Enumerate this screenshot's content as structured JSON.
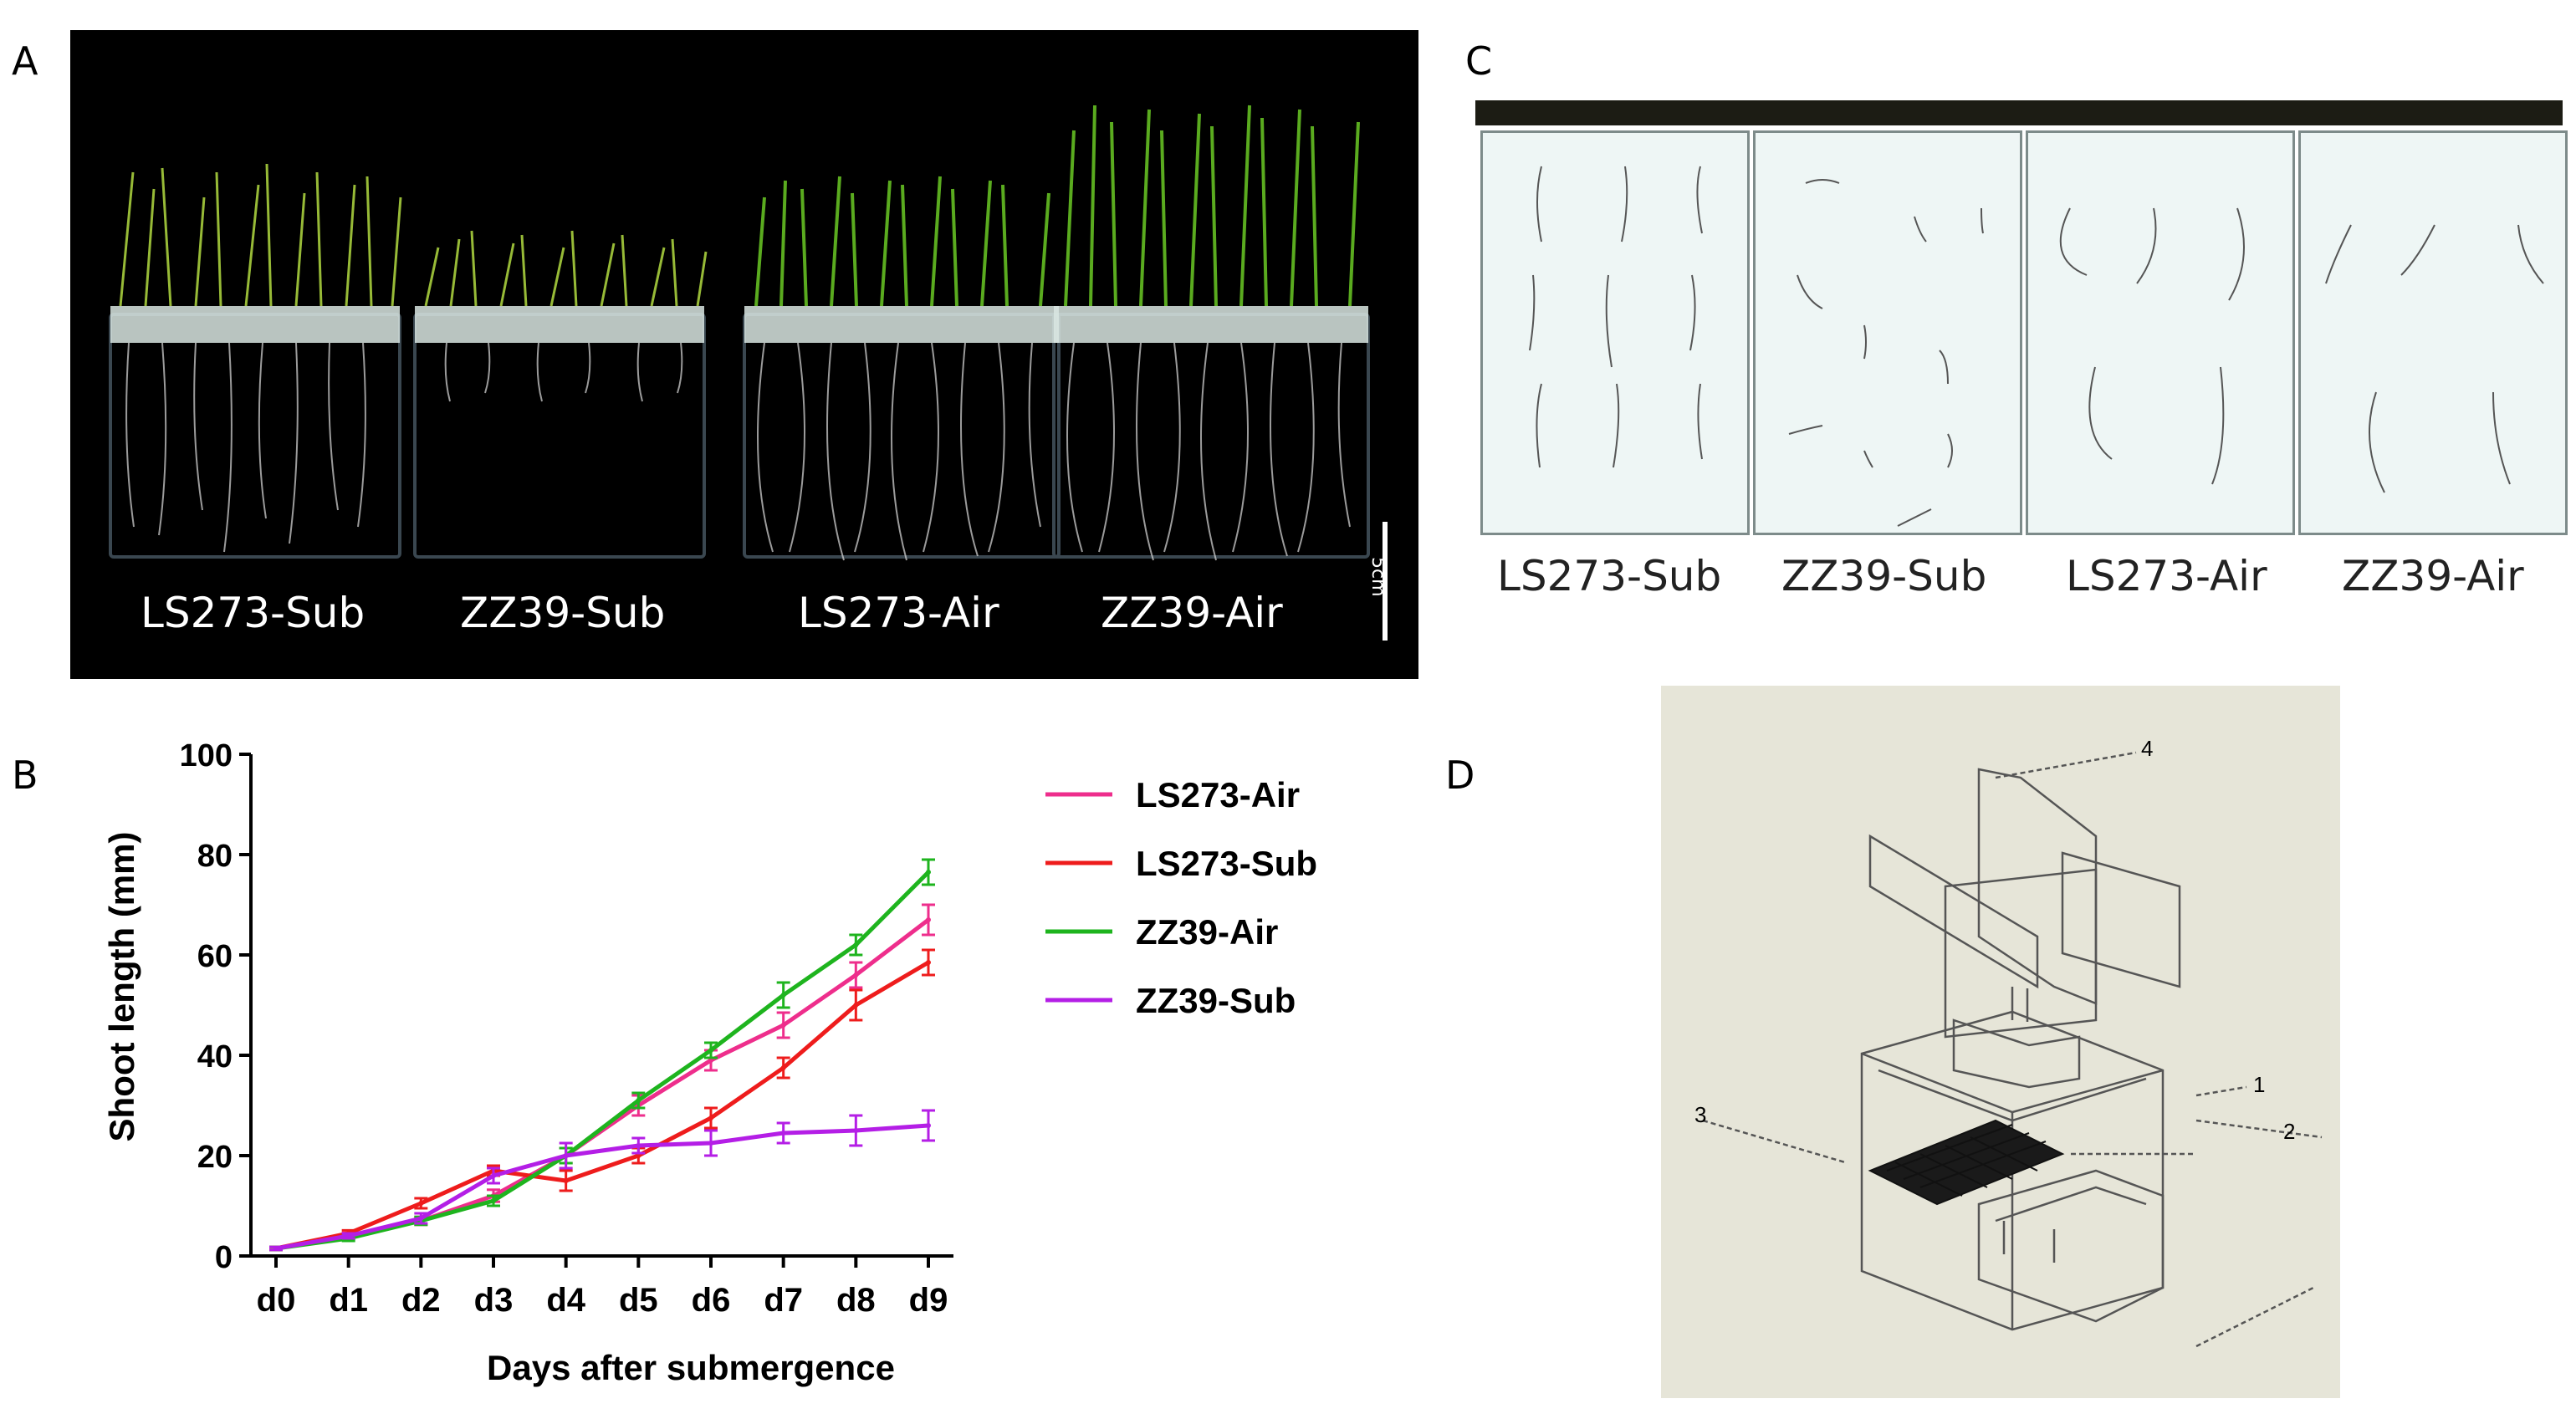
{
  "panels": {
    "a": {
      "letter": "A",
      "labels": [
        "LS273-Sub",
        "ZZ39-Sub",
        "LS273-Air",
        "ZZ39-Air"
      ],
      "scale_label": "5cm"
    },
    "b": {
      "letter": "B"
    },
    "c": {
      "letter": "C",
      "labels": [
        "LS273-Sub",
        "ZZ39-Sub",
        "LS273-Air",
        "ZZ39-Air"
      ]
    },
    "d": {
      "letter": "D",
      "callouts": [
        "1",
        "2",
        "3",
        "4"
      ]
    }
  },
  "chart_data": {
    "type": "line",
    "xlabel": "Days after submergence",
    "ylabel": "Shoot  length (mm)",
    "categories": [
      "d0",
      "d1",
      "d2",
      "d3",
      "d4",
      "d5",
      "d6",
      "d7",
      "d8",
      "d9"
    ],
    "ylim": [
      0,
      100
    ],
    "yticks": [
      0,
      20,
      40,
      60,
      80,
      100
    ],
    "legend_position": "right",
    "series": [
      {
        "name": "LS273-Air",
        "color": "#ee2e8c",
        "values": [
          1.5,
          4,
          7,
          12,
          20,
          30,
          39,
          46,
          56,
          67
        ],
        "errors": [
          0.3,
          0.6,
          0.8,
          1.2,
          1.5,
          2,
          2,
          2.5,
          2.5,
          3
        ]
      },
      {
        "name": "LS273-Sub",
        "color": "#ee1c1c",
        "values": [
          1.5,
          4.5,
          10.5,
          17,
          15,
          20,
          27.5,
          37.5,
          50,
          58.5
        ],
        "errors": [
          0.3,
          0.6,
          1,
          1,
          2,
          1.5,
          2,
          2,
          3,
          2.5
        ]
      },
      {
        "name": "ZZ39-Air",
        "color": "#1eb41e",
        "values": [
          1.5,
          3.5,
          7,
          11,
          20,
          31,
          41,
          52,
          62,
          76.5
        ],
        "errors": [
          0.3,
          0.5,
          0.8,
          1,
          1.5,
          1.5,
          1.5,
          2.5,
          2,
          2.5
        ]
      },
      {
        "name": "ZZ39-Sub",
        "color": "#b41ee6",
        "values": [
          1.5,
          4,
          7.5,
          16,
          20,
          22,
          22.5,
          24.5,
          25,
          26
        ],
        "errors": [
          0.3,
          0.5,
          1,
          1.5,
          2.5,
          1.5,
          2.5,
          2,
          3,
          3
        ]
      }
    ]
  }
}
